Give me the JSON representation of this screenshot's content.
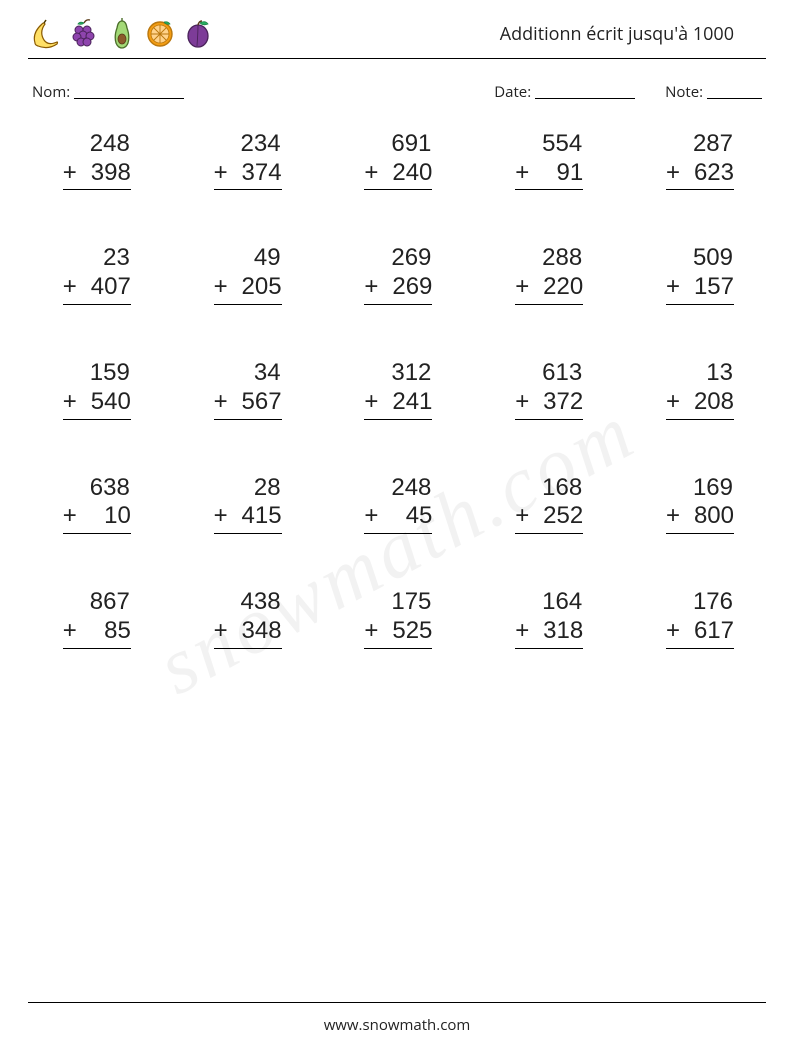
{
  "header": {
    "title": "Additionn écrit jusqu'à 1000",
    "fruits": [
      "banana",
      "grapes",
      "avocado",
      "orange-slice",
      "plum"
    ]
  },
  "meta": {
    "name_label": "Nom:",
    "date_label": "Date:",
    "note_label": "Note:"
  },
  "worksheet": {
    "type": "vertical-addition-grid",
    "columns": 5,
    "rows": 5,
    "operator": "+",
    "font_size_pt": 24,
    "text_color": "#222222",
    "underline_color": "#000000",
    "background_color": "#ffffff",
    "problems": [
      {
        "a": 248,
        "b": 398
      },
      {
        "a": 234,
        "b": 374
      },
      {
        "a": 691,
        "b": 240
      },
      {
        "a": 554,
        "b": 91
      },
      {
        "a": 287,
        "b": 623
      },
      {
        "a": 23,
        "b": 407
      },
      {
        "a": 49,
        "b": 205
      },
      {
        "a": 269,
        "b": 269
      },
      {
        "a": 288,
        "b": 220
      },
      {
        "a": 509,
        "b": 157
      },
      {
        "a": 159,
        "b": 540
      },
      {
        "a": 34,
        "b": 567
      },
      {
        "a": 312,
        "b": 241
      },
      {
        "a": 613,
        "b": 372
      },
      {
        "a": 13,
        "b": 208
      },
      {
        "a": 638,
        "b": 10
      },
      {
        "a": 28,
        "b": 415
      },
      {
        "a": 248,
        "b": 45
      },
      {
        "a": 168,
        "b": 252
      },
      {
        "a": 169,
        "b": 800
      },
      {
        "a": 867,
        "b": 85
      },
      {
        "a": 438,
        "b": 348
      },
      {
        "a": 175,
        "b": 525
      },
      {
        "a": 164,
        "b": 318
      },
      {
        "a": 176,
        "b": 617
      }
    ]
  },
  "footer": {
    "url": "www.snowmath.com"
  },
  "watermark": "snowmath.com",
  "colors": {
    "banana_fill": "#ffe066",
    "banana_stroke": "#8a5a00",
    "grapes_fill": "#8e44ad",
    "grapes_stroke": "#4a235a",
    "leaf": "#27ae60",
    "avocado_fill": "#a3d977",
    "avocado_stroke": "#4b6f2a",
    "avocado_pit": "#8b5a2b",
    "orange_fill": "#f39c12",
    "orange_stroke": "#b9770e",
    "orange_inner": "#ffd28a",
    "plum_fill": "#7d3c98",
    "plum_stroke": "#4a235a"
  }
}
